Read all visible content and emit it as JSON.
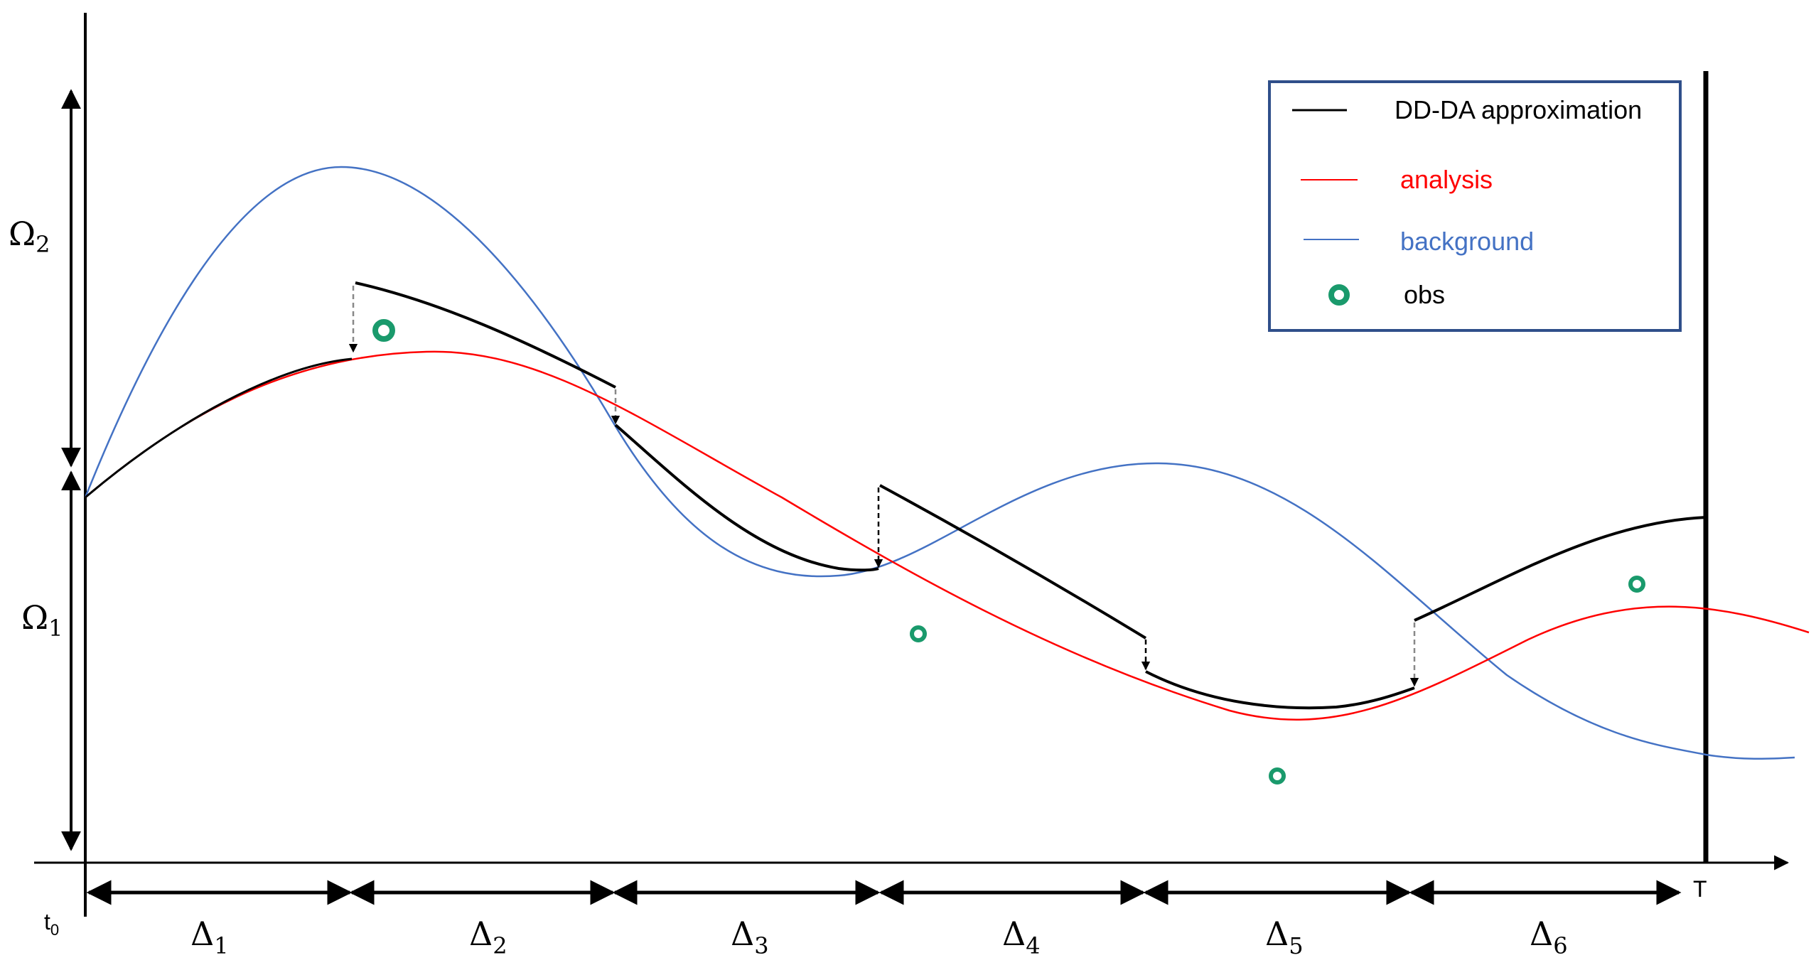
{
  "axes": {
    "t0_label": "t",
    "t0_sub": "0",
    "T_label": "T"
  },
  "subdomains": [
    {
      "symbol": "Ω",
      "sub": "2"
    },
    {
      "symbol": "Ω",
      "sub": "1"
    }
  ],
  "windows": [
    {
      "symbol": "Δ",
      "sub": "1"
    },
    {
      "symbol": "Δ",
      "sub": "2"
    },
    {
      "symbol": "Δ",
      "sub": "3"
    },
    {
      "symbol": "Δ",
      "sub": "4"
    },
    {
      "symbol": "Δ",
      "sub": "5"
    },
    {
      "symbol": "Δ",
      "sub": "6"
    }
  ],
  "legend": [
    {
      "key": "dd",
      "label": "DD-DA approximation",
      "color": "#000000",
      "text_color": "#000000"
    },
    {
      "key": "analysis",
      "label": "analysis",
      "color": "#ff0000",
      "text_color": "#ff0000"
    },
    {
      "key": "background",
      "label": "background",
      "color": "#4472c4",
      "text_color": "#4472c4"
    },
    {
      "key": "obs",
      "label": "obs",
      "color": "#1a9a6c",
      "text_color": "#000000"
    }
  ],
  "colors": {
    "dd": "#000000",
    "analysis": "#ff0000",
    "background": "#4472c4",
    "obs": "#1a9a6c",
    "legend_border": "#2f4f8a",
    "correction_arrow": "#888888"
  }
}
